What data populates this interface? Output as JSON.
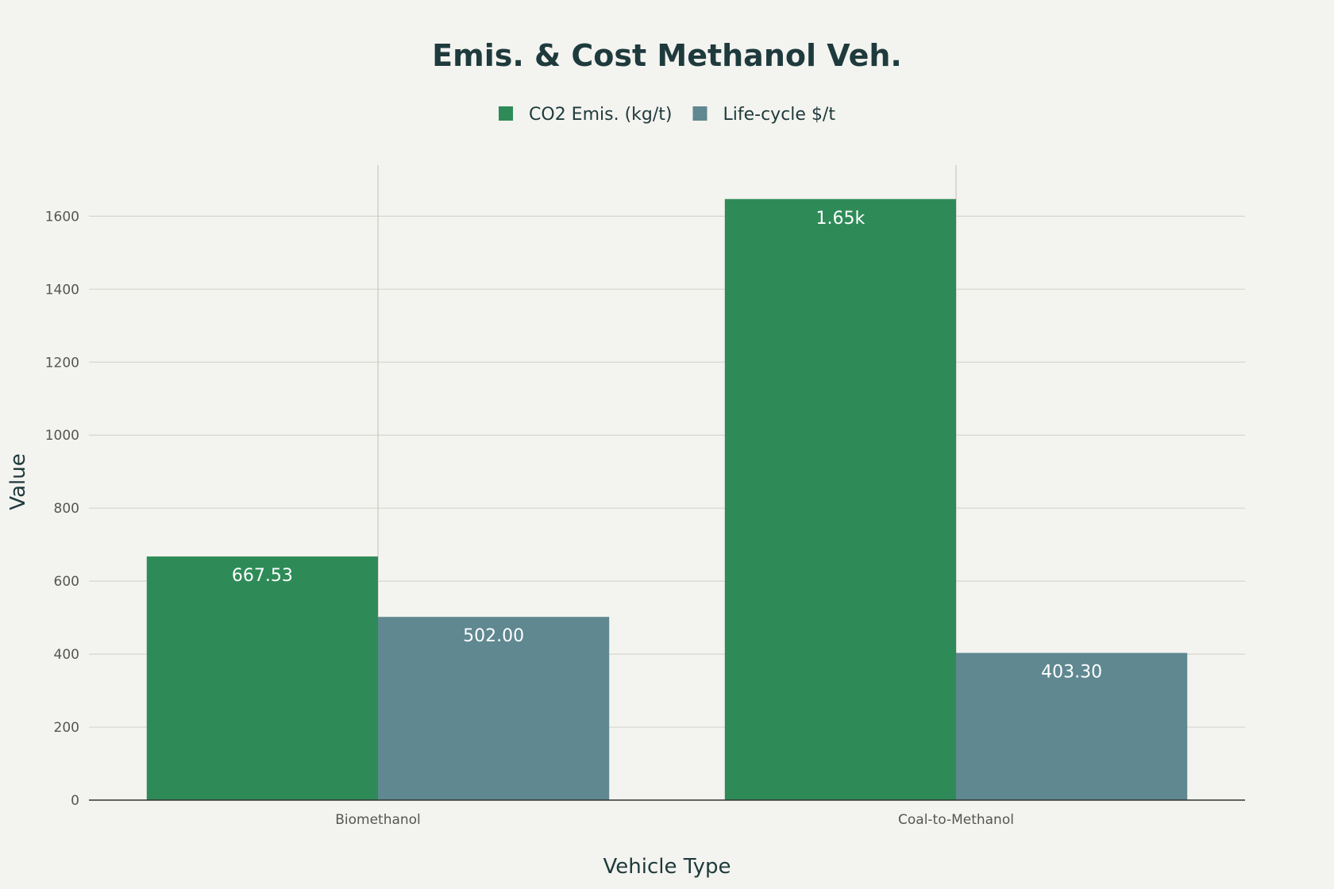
{
  "chart_data": {
    "type": "bar",
    "title": "Emis. & Cost Methanol Veh.",
    "xlabel": "Vehicle Type",
    "ylabel": "Value",
    "categories": [
      "Biomethanol",
      "Coal-to-Methanol"
    ],
    "series": [
      {
        "name": "CO2 Emis. (kg/t)",
        "values": [
          667.53,
          1647
        ],
        "labels": [
          "667.53",
          "1.65k"
        ],
        "color": "#2e8b57"
      },
      {
        "name": "Life-cycle $/t",
        "values": [
          502.0,
          403.3
        ],
        "labels": [
          "502.00",
          "403.30"
        ],
        "color": "#5f8891"
      }
    ],
    "ylim": [
      0,
      1740
    ],
    "yticks": [
      0,
      200,
      400,
      600,
      800,
      1000,
      1200,
      1400,
      1600
    ],
    "grid": true,
    "legend_position": "top-center"
  }
}
